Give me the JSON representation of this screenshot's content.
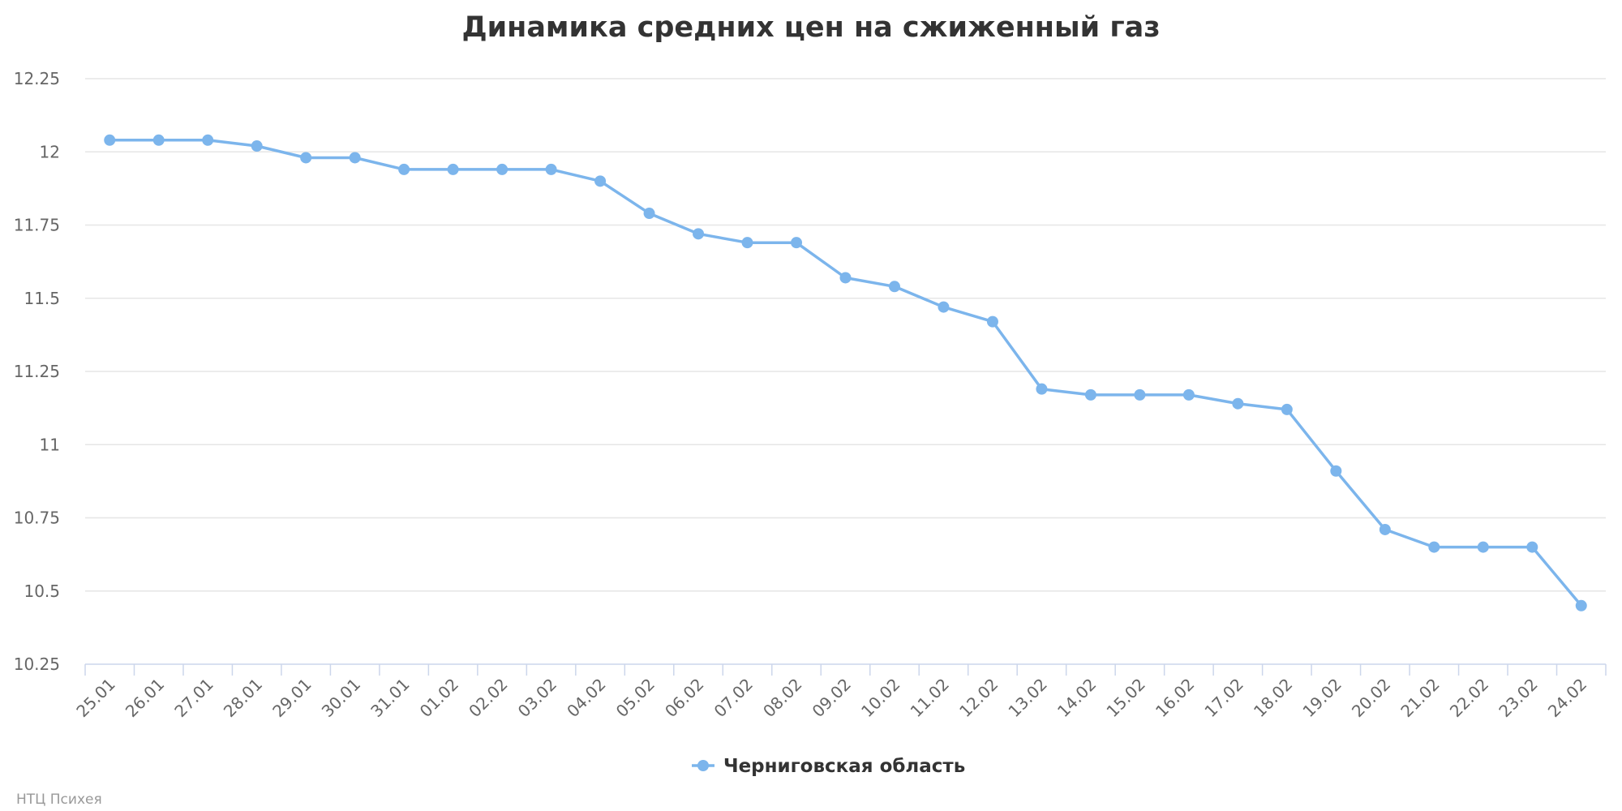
{
  "chart_data": {
    "type": "line",
    "title": "Динамика средних цен на сжиженный газ",
    "xlabel": "",
    "ylabel": "",
    "ylim": [
      10.25,
      12.25
    ],
    "yticks": [
      "10.25",
      "10.5",
      "10.75",
      "11",
      "11.25",
      "11.5",
      "11.75",
      "12",
      "12.25"
    ],
    "grid": true,
    "legend": "bottom-center",
    "categories": [
      "25.01",
      "26.01",
      "27.01",
      "28.01",
      "29.01",
      "30.01",
      "31.01",
      "01.02",
      "02.02",
      "03.02",
      "04.02",
      "05.02",
      "06.02",
      "07.02",
      "08.02",
      "09.02",
      "10.02",
      "11.02",
      "12.02",
      "13.02",
      "14.02",
      "15.02",
      "16.02",
      "17.02",
      "18.02",
      "19.02",
      "20.02",
      "21.02",
      "22.02",
      "23.02",
      "24.02"
    ],
    "series": [
      {
        "name": "Черниговская область",
        "color": "#7cb5ec",
        "values": [
          12.04,
          12.04,
          12.04,
          12.02,
          11.98,
          11.98,
          11.94,
          11.94,
          11.94,
          11.94,
          11.9,
          11.79,
          11.72,
          11.69,
          11.69,
          11.57,
          11.54,
          11.47,
          11.42,
          11.19,
          11.17,
          11.17,
          11.17,
          11.14,
          11.12,
          10.91,
          10.71,
          10.65,
          10.65,
          10.65,
          10.45
        ]
      }
    ]
  },
  "credit": "НТЦ Психея"
}
